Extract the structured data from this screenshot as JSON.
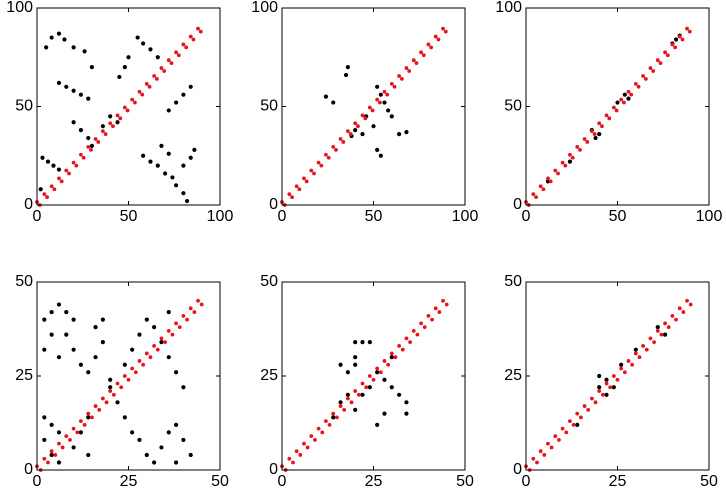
{
  "chart_data": [
    {
      "type": "scatter",
      "xlim": [
        0,
        100
      ],
      "ylim": [
        0,
        100
      ],
      "xticks": [
        0,
        50,
        100
      ],
      "yticks": [
        0,
        50,
        100
      ],
      "grid": false,
      "series": [
        {
          "color": "#000000",
          "x": [
            3,
            6,
            9,
            12,
            2,
            5,
            8,
            12,
            15,
            12,
            16,
            20,
            24,
            28,
            20,
            24,
            28,
            30,
            36,
            40,
            44,
            55,
            58,
            62,
            66,
            58,
            62,
            66,
            70,
            74,
            76,
            80,
            82,
            72,
            76,
            80,
            84,
            45,
            48,
            50,
            68,
            72,
            80,
            84,
            86,
            20,
            26,
            30
          ],
          "values": [
            24,
            22,
            20,
            18,
            8,
            80,
            85,
            87,
            84,
            62,
            60,
            58,
            56,
            54,
            42,
            38,
            34,
            30,
            40,
            45,
            42,
            85,
            82,
            79,
            75,
            25,
            22,
            20,
            16,
            14,
            10,
            6,
            2,
            48,
            52,
            56,
            60,
            65,
            70,
            75,
            30,
            26,
            20,
            24,
            28,
            80,
            78,
            70
          ]
        },
        {
          "color": "#e8141c",
          "x": [
            0,
            4,
            8,
            12,
            16,
            20,
            24,
            28,
            32,
            36,
            40,
            44,
            48,
            52,
            56,
            60,
            64,
            68,
            72,
            76,
            80,
            84,
            88
          ],
          "values": [
            1.5,
            5.5,
            9.5,
            13.5,
            17.5,
            21.5,
            25.5,
            29.5,
            33.5,
            37.5,
            41.5,
            45.5,
            49.5,
            53.5,
            57.5,
            61.5,
            65.5,
            69.5,
            73.5,
            77.5,
            81.5,
            85.5,
            89.5
          ]
        },
        {
          "color": "#e8141c",
          "x": [
            1.5,
            5.5,
            9.5,
            13.5,
            17.5,
            21.5,
            25.5,
            29.5,
            33.5,
            37.5,
            41.5,
            45.5,
            49.5,
            53.5,
            57.5,
            61.5,
            65.5,
            69.5,
            73.5,
            77.5,
            81.5,
            85.5,
            89.5
          ],
          "values": [
            0,
            4,
            8,
            12,
            16,
            20,
            24,
            28,
            32,
            36,
            40,
            44,
            48,
            52,
            56,
            60,
            64,
            68,
            72,
            76,
            80,
            84,
            88
          ]
        }
      ]
    },
    {
      "type": "scatter",
      "xlim": [
        0,
        100
      ],
      "ylim": [
        0,
        100
      ],
      "xticks": [
        0,
        50,
        100
      ],
      "yticks": [
        0,
        50,
        100
      ],
      "grid": false,
      "series": [
        {
          "color": "#000000",
          "x": [
            36,
            35,
            24,
            28,
            44,
            40,
            38,
            52,
            54,
            56,
            58,
            60,
            64,
            68,
            52,
            54,
            50,
            46
          ],
          "values": [
            70,
            66,
            55,
            52,
            36,
            38,
            35,
            60,
            56,
            52,
            48,
            45,
            36,
            37,
            28,
            25,
            40,
            45
          ]
        },
        {
          "color": "#e8141c",
          "x": [
            0,
            4,
            8,
            12,
            16,
            20,
            24,
            28,
            32,
            36,
            40,
            44,
            48,
            52,
            56,
            60,
            64,
            68,
            72,
            76,
            80,
            84,
            88
          ],
          "values": [
            1.5,
            5.5,
            9.5,
            13.5,
            17.5,
            21.5,
            25.5,
            29.5,
            33.5,
            37.5,
            41.5,
            45.5,
            49.5,
            53.5,
            57.5,
            61.5,
            65.5,
            69.5,
            73.5,
            77.5,
            81.5,
            85.5,
            89.5
          ]
        },
        {
          "color": "#e8141c",
          "x": [
            1.5,
            5.5,
            9.5,
            13.5,
            17.5,
            21.5,
            25.5,
            29.5,
            33.5,
            37.5,
            41.5,
            45.5,
            49.5,
            53.5,
            57.5,
            61.5,
            65.5,
            69.5,
            73.5,
            77.5,
            81.5,
            85.5,
            89.5
          ],
          "values": [
            0,
            4,
            8,
            12,
            16,
            20,
            24,
            28,
            32,
            36,
            40,
            44,
            48,
            52,
            56,
            60,
            64,
            68,
            72,
            76,
            80,
            84,
            88
          ]
        }
      ]
    },
    {
      "type": "scatter",
      "xlim": [
        0,
        100
      ],
      "ylim": [
        0,
        100
      ],
      "xticks": [
        0,
        50,
        100
      ],
      "yticks": [
        0,
        50,
        100
      ],
      "grid": false,
      "series": [
        {
          "color": "#000000",
          "x": [
            36,
            38,
            40,
            50,
            54,
            56,
            80,
            82,
            84,
            24,
            12
          ],
          "values": [
            38,
            34,
            36,
            52,
            56,
            54,
            82,
            84,
            86,
            22,
            12
          ]
        },
        {
          "color": "#e8141c",
          "x": [
            0,
            4,
            8,
            12,
            16,
            20,
            24,
            28,
            32,
            36,
            40,
            44,
            48,
            52,
            56,
            60,
            64,
            68,
            72,
            76,
            80,
            84,
            88
          ],
          "values": [
            1.5,
            5.5,
            9.5,
            13.5,
            17.5,
            21.5,
            25.5,
            29.5,
            33.5,
            37.5,
            41.5,
            45.5,
            49.5,
            53.5,
            57.5,
            61.5,
            65.5,
            69.5,
            73.5,
            77.5,
            81.5,
            85.5,
            89.5
          ]
        },
        {
          "color": "#e8141c",
          "x": [
            1.5,
            5.5,
            9.5,
            13.5,
            17.5,
            21.5,
            25.5,
            29.5,
            33.5,
            37.5,
            41.5,
            45.5,
            49.5,
            53.5,
            57.5,
            61.5,
            65.5,
            69.5,
            73.5,
            77.5,
            81.5,
            85.5,
            89.5
          ],
          "values": [
            0,
            4,
            8,
            12,
            16,
            20,
            24,
            28,
            32,
            36,
            40,
            44,
            48,
            52,
            56,
            60,
            64,
            68,
            72,
            76,
            80,
            84,
            88
          ]
        }
      ]
    },
    {
      "type": "scatter",
      "xlim": [
        0,
        50
      ],
      "ylim": [
        0,
        50
      ],
      "xticks": [
        0,
        25,
        50
      ],
      "yticks": [
        0,
        25,
        50
      ],
      "grid": false,
      "series": [
        {
          "color": "#000000",
          "x": [
            2,
            4,
            6,
            8,
            10,
            4,
            8,
            2,
            6,
            10,
            12,
            14,
            16,
            18,
            18,
            16,
            20,
            22,
            24,
            26,
            28,
            30,
            32,
            34,
            36,
            38,
            40,
            42,
            38,
            2,
            4,
            6,
            2,
            4,
            6,
            10,
            12,
            14,
            28,
            30,
            32,
            34,
            36,
            38,
            40,
            36,
            24,
            26,
            20,
            14
          ],
          "values": [
            40,
            42,
            44,
            42,
            40,
            36,
            36,
            32,
            30,
            32,
            28,
            26,
            30,
            34,
            40,
            38,
            22,
            18,
            14,
            10,
            8,
            4,
            2,
            6,
            10,
            12,
            8,
            4,
            2,
            14,
            12,
            10,
            8,
            4,
            2,
            6,
            10,
            14,
            36,
            40,
            38,
            34,
            30,
            26,
            22,
            42,
            28,
            32,
            24,
            4
          ]
        },
        {
          "color": "#e8141c",
          "x": [
            0,
            2,
            4,
            6,
            8,
            10,
            12,
            14,
            16,
            18,
            20,
            22,
            24,
            26,
            28,
            30,
            32,
            34,
            36,
            38,
            40,
            42,
            44
          ],
          "values": [
            1,
            3,
            5,
            7,
            9,
            11,
            13,
            15,
            17,
            19,
            21,
            23,
            25,
            27,
            29,
            31,
            33,
            35,
            37,
            39,
            41,
            43,
            45
          ]
        },
        {
          "color": "#e8141c",
          "x": [
            1,
            3,
            5,
            7,
            9,
            11,
            13,
            15,
            17,
            19,
            21,
            23,
            25,
            27,
            29,
            31,
            33,
            35,
            37,
            39,
            41,
            43,
            45
          ],
          "values": [
            0,
            2,
            4,
            6,
            8,
            10,
            12,
            14,
            16,
            18,
            20,
            22,
            24,
            26,
            28,
            30,
            32,
            34,
            36,
            38,
            40,
            42,
            44
          ]
        }
      ]
    },
    {
      "type": "scatter",
      "xlim": [
        0,
        50
      ],
      "ylim": [
        0,
        50
      ],
      "xticks": [
        0,
        25,
        50
      ],
      "yticks": [
        0,
        25,
        50
      ],
      "grid": false,
      "series": [
        {
          "color": "#000000",
          "x": [
            20,
            22,
            24,
            16,
            18,
            20,
            14,
            16,
            18,
            20,
            22,
            24,
            26,
            28,
            30,
            32,
            34,
            34,
            26,
            28,
            20,
            30
          ],
          "values": [
            34,
            34,
            34,
            28,
            26,
            28,
            14,
            18,
            20,
            16,
            20,
            22,
            26,
            24,
            22,
            20,
            18,
            15,
            12,
            15,
            30,
            30
          ]
        },
        {
          "color": "#e8141c",
          "x": [
            0,
            2,
            4,
            6,
            8,
            10,
            12,
            14,
            16,
            18,
            20,
            22,
            24,
            26,
            28,
            30,
            32,
            34,
            36,
            38,
            40,
            42,
            44
          ],
          "values": [
            1,
            3,
            5,
            7,
            9,
            11,
            13,
            15,
            17,
            19,
            21,
            23,
            25,
            27,
            29,
            31,
            33,
            35,
            37,
            39,
            41,
            43,
            45
          ]
        },
        {
          "color": "#e8141c",
          "x": [
            1,
            3,
            5,
            7,
            9,
            11,
            13,
            15,
            17,
            19,
            21,
            23,
            25,
            27,
            29,
            31,
            33,
            35,
            37,
            39,
            41,
            43,
            45
          ],
          "values": [
            0,
            2,
            4,
            6,
            8,
            10,
            12,
            14,
            16,
            18,
            20,
            22,
            24,
            26,
            28,
            30,
            32,
            34,
            36,
            38,
            40,
            42,
            44
          ]
        }
      ]
    },
    {
      "type": "scatter",
      "xlim": [
        0,
        50
      ],
      "ylim": [
        0,
        50
      ],
      "xticks": [
        0,
        25,
        50
      ],
      "yticks": [
        0,
        25,
        50
      ],
      "grid": false,
      "series": [
        {
          "color": "#000000",
          "x": [
            20,
            20,
            22,
            22,
            24,
            36,
            38,
            30,
            14,
            26
          ],
          "values": [
            22,
            25,
            24,
            20,
            22,
            38,
            36,
            32,
            12,
            28
          ]
        },
        {
          "color": "#e8141c",
          "x": [
            0,
            2,
            4,
            6,
            8,
            10,
            12,
            14,
            16,
            18,
            20,
            22,
            24,
            26,
            28,
            30,
            32,
            34,
            36,
            38,
            40,
            42,
            44
          ],
          "values": [
            1,
            3,
            5,
            7,
            9,
            11,
            13,
            15,
            17,
            19,
            21,
            23,
            25,
            27,
            29,
            31,
            33,
            35,
            37,
            39,
            41,
            43,
            45
          ]
        },
        {
          "color": "#e8141c",
          "x": [
            1,
            3,
            5,
            7,
            9,
            11,
            13,
            15,
            17,
            19,
            21,
            23,
            25,
            27,
            29,
            31,
            33,
            35,
            37,
            39,
            41,
            43,
            45
          ],
          "values": [
            0,
            2,
            4,
            6,
            8,
            10,
            12,
            14,
            16,
            18,
            20,
            22,
            24,
            26,
            28,
            30,
            32,
            34,
            36,
            38,
            40,
            42,
            44
          ]
        }
      ]
    }
  ]
}
